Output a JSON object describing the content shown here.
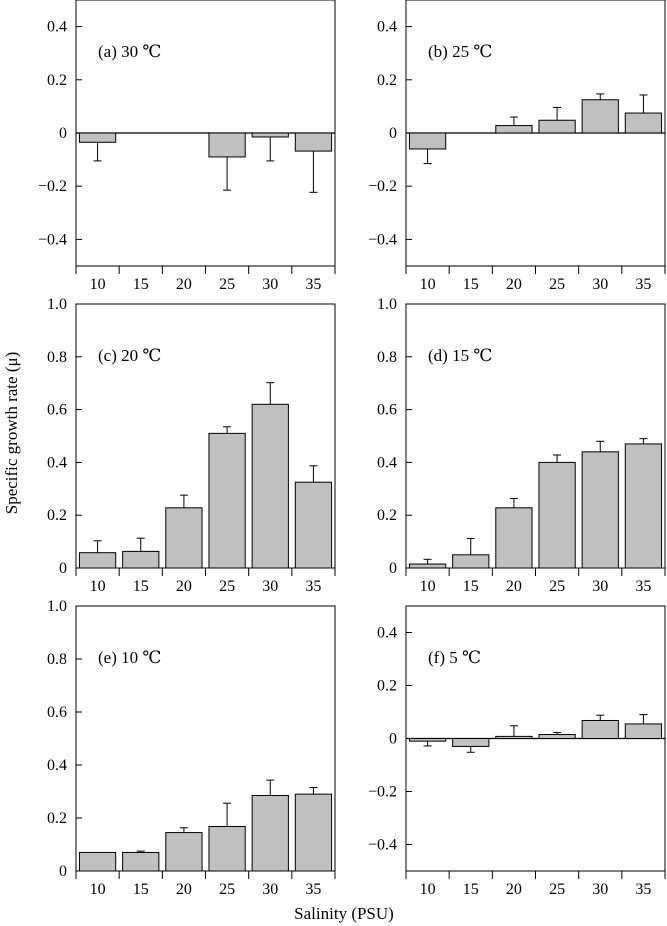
{
  "chart_data": [
    {
      "type": "bar",
      "annotation": "(a) 30 ℃",
      "categories": [
        "10",
        "15",
        "20",
        "25",
        "30",
        "35"
      ],
      "values": [
        -0.035,
        0,
        0,
        -0.09,
        -0.015,
        -0.068
      ],
      "errors": [
        0.07,
        0,
        0,
        0.125,
        0.09,
        0.155
      ],
      "ylim": [
        -0.5,
        0.5
      ],
      "yticks": [
        "0.4",
        "0.2",
        "0",
        "−0.2",
        "−0.4"
      ],
      "ytick_values": [
        0.4,
        0.2,
        0,
        -0.2,
        -0.4
      ]
    },
    {
      "type": "bar",
      "annotation": "(b) 25 ℃",
      "categories": [
        "10",
        "15",
        "20",
        "25",
        "30",
        "35"
      ],
      "values": [
        -0.06,
        0,
        0.028,
        0.048,
        0.125,
        0.075
      ],
      "errors": [
        0.055,
        0,
        0.032,
        0.048,
        0.022,
        0.068
      ],
      "ylim": [
        -0.5,
        0.5
      ],
      "yticks": [
        "0.4",
        "0.2",
        "0",
        "−0.2",
        "−0.4"
      ],
      "ytick_values": [
        0.4,
        0.2,
        0,
        -0.2,
        -0.4
      ]
    },
    {
      "type": "bar",
      "annotation": "(c) 20 ℃",
      "categories": [
        "10",
        "15",
        "20",
        "25",
        "30",
        "35"
      ],
      "values": [
        0.058,
        0.063,
        0.228,
        0.51,
        0.62,
        0.325
      ],
      "errors": [
        0.045,
        0.05,
        0.048,
        0.025,
        0.082,
        0.062
      ],
      "ylim": [
        0,
        1.0
      ],
      "yticks": [
        "1.0",
        "0.8",
        "0.6",
        "0.4",
        "0.2",
        "0"
      ],
      "ytick_values": [
        1.0,
        0.8,
        0.6,
        0.4,
        0.2,
        0
      ]
    },
    {
      "type": "bar",
      "annotation": "(d) 15 ℃",
      "categories": [
        "10",
        "15",
        "20",
        "25",
        "30",
        "35"
      ],
      "values": [
        0.015,
        0.05,
        0.228,
        0.4,
        0.44,
        0.47
      ],
      "errors": [
        0.018,
        0.062,
        0.035,
        0.028,
        0.04,
        0.02
      ],
      "ylim": [
        0,
        1.0
      ],
      "yticks": [
        "1.0",
        "0.8",
        "0.6",
        "0.4",
        "0.2",
        "0"
      ],
      "ytick_values": [
        1.0,
        0.8,
        0.6,
        0.4,
        0.2,
        0
      ]
    },
    {
      "type": "bar",
      "annotation": "(e) 10 ℃",
      "categories": [
        "10",
        "15",
        "20",
        "25",
        "30",
        "35"
      ],
      "values": [
        0.07,
        0.07,
        0.145,
        0.168,
        0.285,
        0.29
      ],
      "errors": [
        0,
        0.005,
        0.018,
        0.088,
        0.058,
        0.025
      ],
      "ylim": [
        0,
        1.0
      ],
      "yticks": [
        "1.0",
        "0.8",
        "0.6",
        "0.4",
        "0.2",
        "0"
      ],
      "ytick_values": [
        1.0,
        0.8,
        0.6,
        0.4,
        0.2,
        0
      ]
    },
    {
      "type": "bar",
      "annotation": "(f) 5 ℃",
      "categories": [
        "10",
        "15",
        "20",
        "25",
        "30",
        "35"
      ],
      "values": [
        -0.01,
        -0.03,
        0.008,
        0.015,
        0.068,
        0.055
      ],
      "errors": [
        0.018,
        0.022,
        0.04,
        0.008,
        0.02,
        0.035
      ],
      "ylim": [
        -0.5,
        0.5
      ],
      "yticks": [
        "0.4",
        "0.2",
        "0",
        "−0.2",
        "−0.4"
      ],
      "ytick_values": [
        0.4,
        0.2,
        0,
        -0.2,
        -0.4
      ]
    }
  ],
  "ylabel": "Specific growth rate (μ)",
  "xlabel": "Salinity (PSU)",
  "colors": {
    "bar_fill": "#c0c0c0",
    "stroke": "#000000"
  }
}
